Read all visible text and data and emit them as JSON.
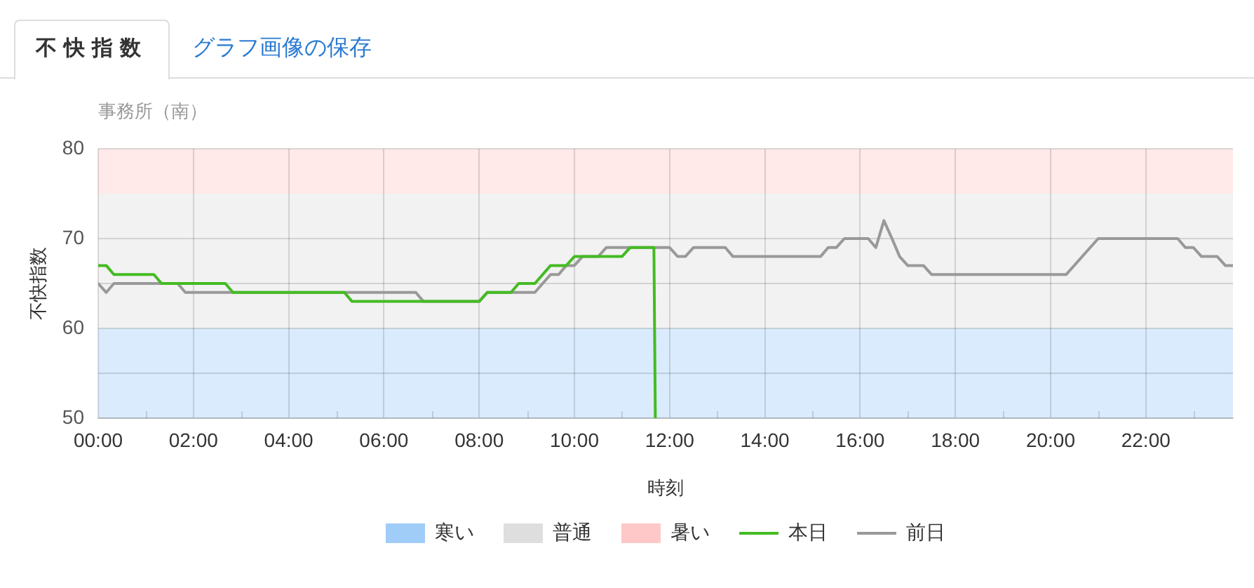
{
  "chart_data": {
    "type": "line",
    "title": "不快指数",
    "subtitle": "事務所（南）",
    "xlabel": "時刻",
    "ylabel": "不快指数",
    "annotations": [
      "グラフ画像の保存"
    ],
    "series": [
      {
        "name": "本日",
        "color": "#44bb22",
        "x": [
          0,
          0.17,
          0.33,
          1.17,
          1.33,
          2.67,
          2.83,
          5.17,
          5.33,
          8,
          8.17,
          8.67,
          8.83,
          9.17,
          9.5,
          9.83,
          10,
          11,
          11.17,
          11.67,
          11.7
        ],
        "values": [
          67,
          67,
          66,
          66,
          65,
          65,
          64,
          64,
          63,
          63,
          64,
          64,
          65,
          65,
          67,
          67,
          68,
          68,
          69,
          69,
          50
        ]
      },
      {
        "name": "前日",
        "color": "#999999",
        "x": [
          0,
          0.17,
          0.33,
          1.67,
          1.83,
          6.67,
          6.83,
          8,
          8.17,
          9.17,
          9.5,
          9.67,
          9.83,
          10,
          10.17,
          10.5,
          10.67,
          12,
          12.17,
          12.33,
          12.5,
          13.17,
          13.33,
          15.17,
          15.33,
          15.5,
          15.67,
          16.17,
          16.33,
          16.5,
          16.67,
          16.83,
          17,
          17.33,
          17.5,
          20.33,
          21,
          22.67,
          22.83,
          23,
          23.17,
          23.5,
          23.67,
          23.83
        ],
        "values": [
          65,
          64,
          65,
          65,
          64,
          64,
          63,
          63,
          64,
          64,
          66,
          66,
          67,
          67,
          68,
          68,
          69,
          69,
          68,
          68,
          69,
          69,
          68,
          68,
          69,
          69,
          70,
          70,
          69,
          72,
          70,
          68,
          67,
          67,
          66,
          66,
          70,
          70,
          69,
          69,
          68,
          68,
          67,
          67
        ]
      }
    ],
    "xlim": [
      0,
      23.83
    ],
    "xticks": [
      {
        "value": 0,
        "label": "00:00"
      },
      {
        "value": 1,
        "label": null
      },
      {
        "value": 2,
        "label": "02:00"
      },
      {
        "value": 3,
        "label": null
      },
      {
        "value": 4,
        "label": "04:00"
      },
      {
        "value": 5,
        "label": null
      },
      {
        "value": 6,
        "label": "06:00"
      },
      {
        "value": 7,
        "label": null
      },
      {
        "value": 8,
        "label": "08:00"
      },
      {
        "value": 9,
        "label": null
      },
      {
        "value": 10,
        "label": "10:00"
      },
      {
        "value": 11,
        "label": null
      },
      {
        "value": 12,
        "label": "12:00"
      },
      {
        "value": 13,
        "label": null
      },
      {
        "value": 14,
        "label": "14:00"
      },
      {
        "value": 15,
        "label": null
      },
      {
        "value": 16,
        "label": "16:00"
      },
      {
        "value": 17,
        "label": null
      },
      {
        "value": 18,
        "label": "18:00"
      },
      {
        "value": 19,
        "label": null
      },
      {
        "value": 20,
        "label": "20:00"
      },
      {
        "value": 21,
        "label": null
      },
      {
        "value": 22,
        "label": "22:00"
      },
      {
        "value": 23,
        "label": null
      }
    ],
    "ylim": [
      50,
      80
    ],
    "yticks": [
      50,
      {
        "value": 55,
        "label": null
      },
      60,
      {
        "value": 65,
        "label": null
      },
      70,
      80
    ],
    "bands": [
      {
        "axis": "y",
        "from": 50,
        "to": 60,
        "label": "寒い",
        "color": "#a0ccf8"
      },
      {
        "axis": "y",
        "from": 60,
        "to": 75,
        "label": "普通",
        "color": "#dedede"
      },
      {
        "axis": "y",
        "from": 75,
        "to": 80,
        "label": "暑い",
        "color": "#ffc8c8"
      }
    ],
    "grid": true,
    "legend": "bottom",
    "marker": "none"
  }
}
